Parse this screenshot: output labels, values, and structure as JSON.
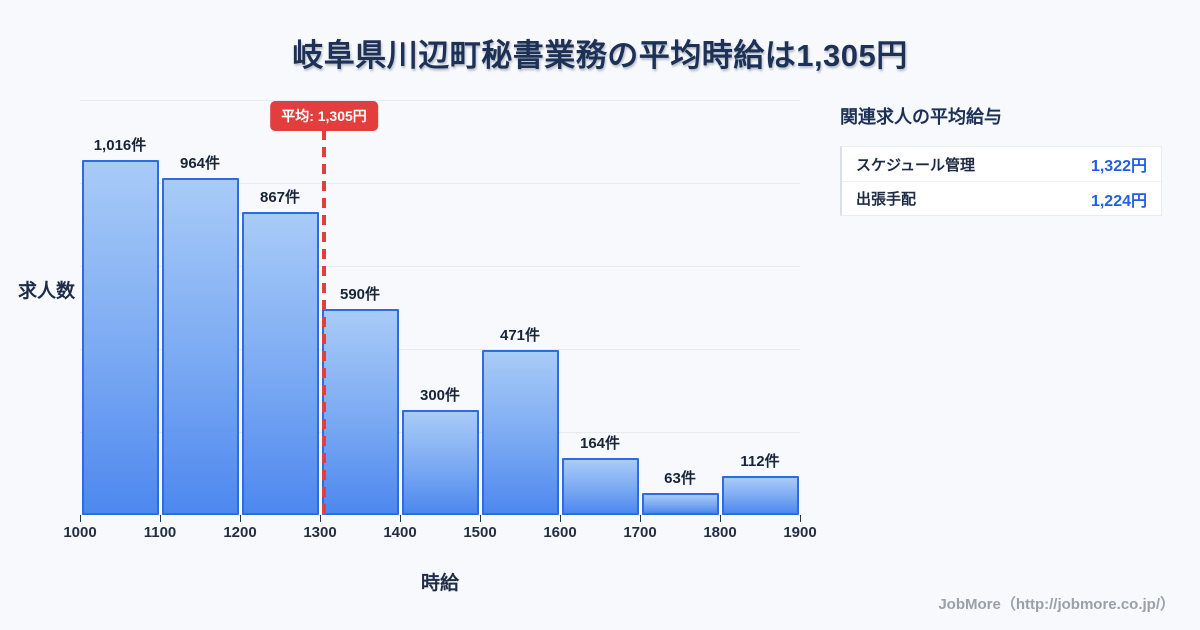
{
  "title": "岐阜県川辺町秘書業務の平均時給は1,305円",
  "chart_data": {
    "type": "bar",
    "title": "岐阜県川辺町秘書業務の平均時給は1,305円",
    "xlabel": "時給",
    "ylabel": "求人数",
    "categories": [
      "1000-1100",
      "1100-1200",
      "1200-1300",
      "1300-1400",
      "1400-1500",
      "1500-1600",
      "1600-1700",
      "1700-1800",
      "1800-1900"
    ],
    "values": [
      1016,
      964,
      867,
      590,
      300,
      471,
      164,
      63,
      112
    ],
    "bar_labels": [
      "1,016件",
      "964件",
      "867件",
      "590件",
      "300件",
      "471件",
      "164件",
      "63件",
      "112件"
    ],
    "x_ticks": [
      "1000",
      "1100",
      "1200",
      "1300",
      "1400",
      "1500",
      "1600",
      "1700",
      "1800",
      "1900"
    ],
    "x_range": [
      1000,
      1900
    ],
    "average": {
      "value": 1305,
      "label": "平均: 1,305円"
    },
    "grid": "horizontal",
    "legend": "none",
    "colors": {
      "bar_fill_top": "#a8cbf7",
      "bar_fill_bottom": "#4e88ef",
      "bar_border": "#2c6be2",
      "average_line": "#e23e3e",
      "gridline": "#e7ebf1",
      "background": "#f7f9fc",
      "text": "#1d3156",
      "value_accent": "#2160e6"
    }
  },
  "related_panel": {
    "title": "関連求人の平均給与",
    "rows": [
      {
        "label": "スケジュール管理",
        "value": "1,322円"
      },
      {
        "label": "出張手配",
        "value": "1,224円"
      }
    ]
  },
  "footer": {
    "credit": "JobMore（http://jobmore.co.jp/）"
  }
}
